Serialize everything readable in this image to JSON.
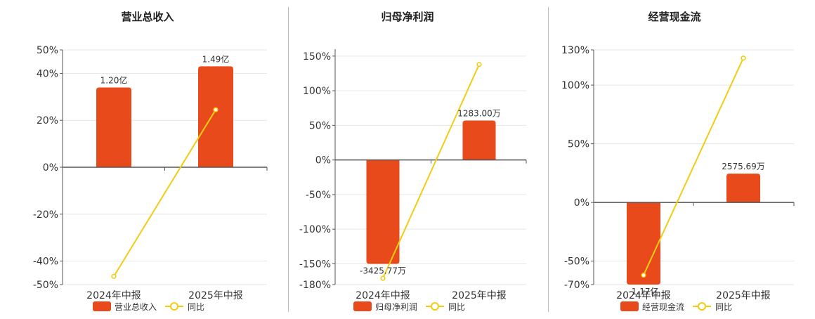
{
  "colors": {
    "bar": "#E84A1B",
    "line": "#F2CC14",
    "grid": "#e6e6e6",
    "axis": "#555555"
  },
  "legend_line_label": "同比",
  "chart_data": [
    {
      "type": "bar",
      "title": "营业总收入",
      "categories": [
        "2024年中报",
        "2025年中报"
      ],
      "series": [
        {
          "name": "营业总收入",
          "type": "bar",
          "values": [
            34,
            43
          ],
          "labels": [
            "1.20亿",
            "1.49亿"
          ]
        },
        {
          "name": "同比",
          "type": "line",
          "values": [
            -46.5,
            24.5
          ]
        }
      ],
      "ylim": [
        -50,
        50
      ],
      "yticks": [
        50,
        40,
        20,
        0,
        -20,
        -40,
        -50
      ],
      "ytick_labels": [
        "50%",
        "40%",
        "20%",
        "0%",
        "-20%",
        "-40%",
        "-50%"
      ],
      "grid": true,
      "legend": "bottom"
    },
    {
      "type": "bar",
      "title": "归母净利润",
      "categories": [
        "2024年中报",
        "2025年中报"
      ],
      "series": [
        {
          "name": "归母净利润",
          "type": "bar",
          "values": [
            -150,
            57
          ],
          "labels": [
            "-3425.77万",
            "1283.00万"
          ]
        },
        {
          "name": "同比",
          "type": "line",
          "values": [
            -171,
            138
          ]
        }
      ],
      "ylim": [
        -180,
        160
      ],
      "yticks": [
        150,
        100,
        50,
        0,
        -50,
        -100,
        -150,
        -180
      ],
      "ytick_labels": [
        "150%",
        "100%",
        "50%",
        "0%",
        "-50%",
        "-100%",
        "-150%",
        "-180%"
      ],
      "grid": true,
      "legend": "bottom"
    },
    {
      "type": "bar",
      "title": "经营现金流",
      "categories": [
        "2024年中报",
        "2025年中报"
      ],
      "series": [
        {
          "name": "经营现金流",
          "type": "bar",
          "values": [
            -70,
            24.5
          ],
          "labels": [
            "-1.17亿",
            "2575.69万"
          ]
        },
        {
          "name": "同比",
          "type": "line",
          "values": [
            -62,
            123
          ]
        }
      ],
      "ylim": [
        -70,
        130
      ],
      "yticks": [
        130,
        100,
        50,
        0,
        -50,
        -70
      ],
      "ytick_labels": [
        "130%",
        "100%",
        "50%",
        "0%",
        "-50%",
        "-70%"
      ],
      "grid": true,
      "legend": "bottom"
    }
  ]
}
